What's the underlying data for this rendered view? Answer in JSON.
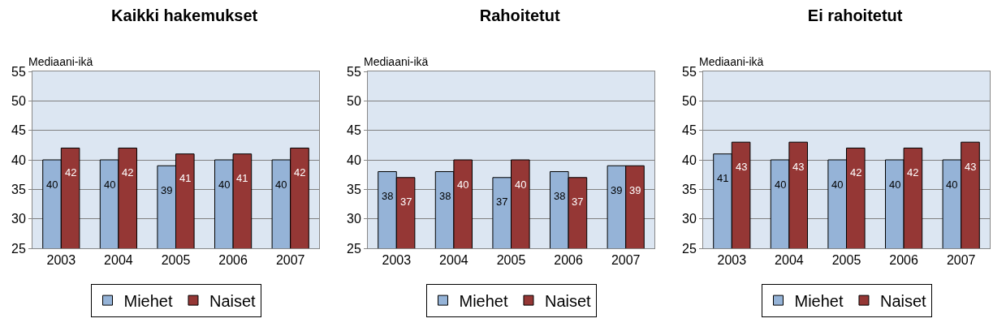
{
  "chart_data": [
    {
      "type": "bar",
      "title": "Kaikki hakemukset",
      "ylabel": "Mediaani-ikä",
      "categories": [
        "2003",
        "2004",
        "2005",
        "2006",
        "2007"
      ],
      "series": [
        {
          "name": "Miehet",
          "color": "#95b3d7",
          "values": [
            40,
            40,
            39,
            40,
            40
          ]
        },
        {
          "name": "Naiset",
          "color": "#953735",
          "values": [
            42,
            42,
            41,
            41,
            42
          ]
        }
      ],
      "ylim": [
        25,
        55
      ],
      "yticks": [
        25,
        30,
        35,
        40,
        45,
        50,
        55
      ],
      "grid": "y",
      "legend": "bottom",
      "data_labels": true
    },
    {
      "type": "bar",
      "title": "Rahoitetut",
      "ylabel": "Mediaani-ikä",
      "categories": [
        "2003",
        "2004",
        "2005",
        "2006",
        "2007"
      ],
      "series": [
        {
          "name": "Miehet",
          "color": "#95b3d7",
          "values": [
            38,
            38,
            37,
            38,
            39
          ]
        },
        {
          "name": "Naiset",
          "color": "#953735",
          "values": [
            37,
            40,
            40,
            37,
            39
          ]
        }
      ],
      "ylim": [
        25,
        55
      ],
      "yticks": [
        25,
        30,
        35,
        40,
        45,
        50,
        55
      ],
      "grid": "y",
      "legend": "bottom",
      "data_labels": true
    },
    {
      "type": "bar",
      "title": "Ei rahoitetut",
      "ylabel": "Mediaani-ikä",
      "categories": [
        "2003",
        "2004",
        "2005",
        "2006",
        "2007"
      ],
      "series": [
        {
          "name": "Miehet",
          "color": "#95b3d7",
          "values": [
            41,
            40,
            40,
            40,
            40
          ]
        },
        {
          "name": "Naiset",
          "color": "#953735",
          "values": [
            43,
            43,
            42,
            42,
            43
          ]
        }
      ],
      "ylim": [
        25,
        55
      ],
      "yticks": [
        25,
        30,
        35,
        40,
        45,
        50,
        55
      ],
      "grid": "y",
      "legend": "bottom",
      "data_labels": true
    }
  ]
}
